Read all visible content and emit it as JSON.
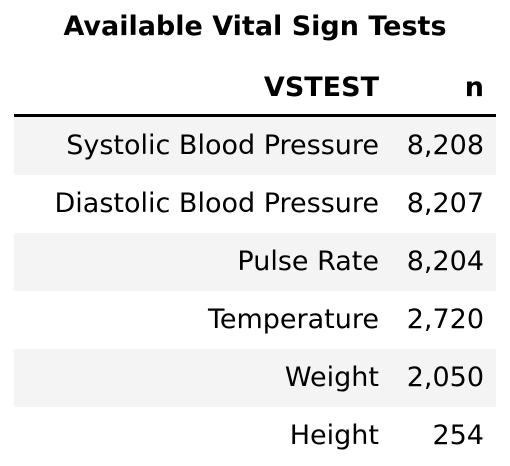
{
  "title": "Available Vital Sign Tests",
  "columns": [
    "VSTEST",
    "n"
  ],
  "rows": [
    {
      "test": "Systolic Blood Pressure",
      "n": "8,208"
    },
    {
      "test": "Diastolic Blood Pressure",
      "n": "8,207"
    },
    {
      "test": "Pulse Rate",
      "n": "8,204"
    },
    {
      "test": "Temperature",
      "n": "2,720"
    },
    {
      "test": "Weight",
      "n": "2,050"
    },
    {
      "test": "Height",
      "n": "254"
    }
  ],
  "colors": {
    "stripe": "#f4f4f4",
    "rule": "#000000"
  },
  "chart_data": {
    "type": "table",
    "title": "Available Vital Sign Tests",
    "columns": [
      "VSTEST",
      "n"
    ],
    "rows": [
      [
        "Systolic Blood Pressure",
        8208
      ],
      [
        "Diastolic Blood Pressure",
        8207
      ],
      [
        "Pulse Rate",
        8204
      ],
      [
        "Temperature",
        2720
      ],
      [
        "Weight",
        2050
      ],
      [
        "Height",
        254
      ]
    ]
  }
}
